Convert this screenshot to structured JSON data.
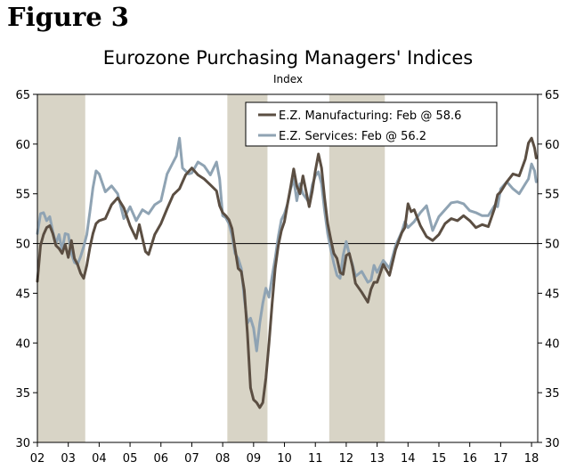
{
  "figure_label": "Figure 3",
  "chart_data": {
    "type": "line",
    "title": "Eurozone Purchasing Managers' Indices",
    "subtitle": "Index",
    "ylim": [
      30,
      65
    ],
    "yticks": [
      "65",
      "60",
      "55",
      "50",
      "45",
      "40",
      "35",
      "30"
    ],
    "xlim": [
      2002,
      2018.2
    ],
    "xticks": [
      "02",
      "03",
      "04",
      "05",
      "06",
      "07",
      "08",
      "09",
      "10",
      "11",
      "12",
      "13",
      "14",
      "15",
      "16",
      "17",
      "18"
    ],
    "reference_line": 50,
    "colors": {
      "manufacturing": "#5b4e42",
      "services": "#8fa3b3",
      "recession": "#d8d4c6"
    },
    "recessions": [
      {
        "start": 2002.0,
        "end": 2003.55
      },
      {
        "start": 2008.15,
        "end": 2009.45
      },
      {
        "start": 2011.45,
        "end": 2013.25
      }
    ],
    "series": [
      {
        "name": "E.Z. Manufacturing: Feb @ 58.6",
        "key": "manufacturing",
        "points": [
          [
            2002.0,
            46.2
          ],
          [
            2002.1,
            49.8
          ],
          [
            2002.2,
            50.9
          ],
          [
            2002.3,
            51.6
          ],
          [
            2002.4,
            51.8
          ],
          [
            2002.5,
            51.0
          ],
          [
            2002.6,
            49.8
          ],
          [
            2002.7,
            49.5
          ],
          [
            2002.8,
            49.0
          ],
          [
            2002.9,
            49.9
          ],
          [
            2003.0,
            48.6
          ],
          [
            2003.1,
            50.3
          ],
          [
            2003.2,
            48.5
          ],
          [
            2003.3,
            47.9
          ],
          [
            2003.4,
            47.0
          ],
          [
            2003.5,
            46.5
          ],
          [
            2003.6,
            47.8
          ],
          [
            2003.7,
            49.6
          ],
          [
            2003.8,
            51.0
          ],
          [
            2003.9,
            52.0
          ],
          [
            2004.0,
            52.3
          ],
          [
            2004.2,
            52.5
          ],
          [
            2004.4,
            53.9
          ],
          [
            2004.6,
            54.6
          ],
          [
            2004.8,
            53.6
          ],
          [
            2005.0,
            51.8
          ],
          [
            2005.2,
            50.5
          ],
          [
            2005.3,
            51.9
          ],
          [
            2005.5,
            49.2
          ],
          [
            2005.6,
            48.9
          ],
          [
            2005.8,
            50.9
          ],
          [
            2006.0,
            52.0
          ],
          [
            2006.2,
            53.5
          ],
          [
            2006.4,
            54.9
          ],
          [
            2006.6,
            55.5
          ],
          [
            2006.8,
            56.9
          ],
          [
            2007.0,
            57.6
          ],
          [
            2007.2,
            56.9
          ],
          [
            2007.4,
            56.5
          ],
          [
            2007.6,
            55.9
          ],
          [
            2007.8,
            55.3
          ],
          [
            2007.9,
            53.8
          ],
          [
            2008.0,
            53.1
          ],
          [
            2008.1,
            52.8
          ],
          [
            2008.2,
            52.4
          ],
          [
            2008.3,
            51.5
          ],
          [
            2008.4,
            49.5
          ],
          [
            2008.5,
            47.5
          ],
          [
            2008.6,
            47.2
          ],
          [
            2008.7,
            45.3
          ],
          [
            2008.8,
            41.0
          ],
          [
            2008.9,
            35.5
          ],
          [
            2009.0,
            34.3
          ],
          [
            2009.1,
            34.0
          ],
          [
            2009.2,
            33.5
          ],
          [
            2009.3,
            34.0
          ],
          [
            2009.4,
            36.5
          ],
          [
            2009.5,
            40.0
          ],
          [
            2009.6,
            44.0
          ],
          [
            2009.7,
            47.5
          ],
          [
            2009.8,
            49.8
          ],
          [
            2009.9,
            51.3
          ],
          [
            2010.0,
            52.2
          ],
          [
            2010.1,
            54.0
          ],
          [
            2010.2,
            55.7
          ],
          [
            2010.3,
            57.5
          ],
          [
            2010.4,
            55.8
          ],
          [
            2010.5,
            55.0
          ],
          [
            2010.6,
            56.8
          ],
          [
            2010.8,
            53.7
          ],
          [
            2010.9,
            55.3
          ],
          [
            2011.0,
            57.3
          ],
          [
            2011.1,
            59.0
          ],
          [
            2011.2,
            57.6
          ],
          [
            2011.3,
            54.6
          ],
          [
            2011.4,
            52.0
          ],
          [
            2011.5,
            50.4
          ],
          [
            2011.6,
            49.0
          ],
          [
            2011.7,
            48.5
          ],
          [
            2011.8,
            47.1
          ],
          [
            2011.9,
            46.9
          ],
          [
            2012.0,
            48.8
          ],
          [
            2012.1,
            49.0
          ],
          [
            2012.2,
            47.7
          ],
          [
            2012.3,
            46.0
          ],
          [
            2012.5,
            45.1
          ],
          [
            2012.7,
            44.1
          ],
          [
            2012.8,
            45.4
          ],
          [
            2012.9,
            46.1
          ],
          [
            2013.0,
            46.1
          ],
          [
            2013.2,
            47.9
          ],
          [
            2013.4,
            46.8
          ],
          [
            2013.6,
            49.4
          ],
          [
            2013.8,
            51.1
          ],
          [
            2013.9,
            51.6
          ],
          [
            2014.0,
            54.0
          ],
          [
            2014.1,
            53.2
          ],
          [
            2014.2,
            53.4
          ],
          [
            2014.4,
            51.8
          ],
          [
            2014.6,
            50.7
          ],
          [
            2014.8,
            50.3
          ],
          [
            2015.0,
            50.9
          ],
          [
            2015.2,
            52.0
          ],
          [
            2015.4,
            52.5
          ],
          [
            2015.6,
            52.3
          ],
          [
            2015.8,
            52.8
          ],
          [
            2016.0,
            52.3
          ],
          [
            2016.2,
            51.6
          ],
          [
            2016.4,
            51.9
          ],
          [
            2016.6,
            51.7
          ],
          [
            2016.8,
            53.5
          ],
          [
            2016.9,
            54.9
          ],
          [
            2017.0,
            55.2
          ],
          [
            2017.2,
            56.2
          ],
          [
            2017.4,
            57.0
          ],
          [
            2017.6,
            56.8
          ],
          [
            2017.8,
            58.5
          ],
          [
            2017.9,
            60.1
          ],
          [
            2018.0,
            60.6
          ],
          [
            2018.1,
            59.6
          ],
          [
            2018.15,
            58.6
          ]
        ]
      },
      {
        "name": "E.Z. Services: Feb @ 56.2",
        "key": "services",
        "points": [
          [
            2002.0,
            51.0
          ],
          [
            2002.1,
            53.0
          ],
          [
            2002.2,
            53.1
          ],
          [
            2002.3,
            52.3
          ],
          [
            2002.4,
            52.7
          ],
          [
            2002.5,
            51.2
          ],
          [
            2002.6,
            50.0
          ],
          [
            2002.7,
            50.9
          ],
          [
            2002.8,
            49.3
          ],
          [
            2002.9,
            51.0
          ],
          [
            2003.0,
            50.9
          ],
          [
            2003.1,
            49.0
          ],
          [
            2003.2,
            48.1
          ],
          [
            2003.3,
            47.9
          ],
          [
            2003.4,
            48.7
          ],
          [
            2003.5,
            49.7
          ],
          [
            2003.6,
            50.9
          ],
          [
            2003.7,
            53.2
          ],
          [
            2003.8,
            55.6
          ],
          [
            2003.9,
            57.3
          ],
          [
            2004.0,
            57.0
          ],
          [
            2004.2,
            55.2
          ],
          [
            2004.4,
            55.8
          ],
          [
            2004.6,
            55.0
          ],
          [
            2004.8,
            52.5
          ],
          [
            2005.0,
            53.7
          ],
          [
            2005.2,
            52.3
          ],
          [
            2005.4,
            53.4
          ],
          [
            2005.6,
            53.0
          ],
          [
            2005.8,
            53.9
          ],
          [
            2006.0,
            54.3
          ],
          [
            2006.2,
            57.0
          ],
          [
            2006.4,
            58.2
          ],
          [
            2006.5,
            58.8
          ],
          [
            2006.6,
            60.6
          ],
          [
            2006.7,
            57.6
          ],
          [
            2006.9,
            57.0
          ],
          [
            2007.0,
            57.1
          ],
          [
            2007.2,
            58.2
          ],
          [
            2007.4,
            57.8
          ],
          [
            2007.6,
            56.9
          ],
          [
            2007.8,
            58.2
          ],
          [
            2007.9,
            56.5
          ],
          [
            2008.0,
            52.8
          ],
          [
            2008.1,
            52.6
          ],
          [
            2008.2,
            52.0
          ],
          [
            2008.3,
            50.8
          ],
          [
            2008.4,
            49.0
          ],
          [
            2008.5,
            48.5
          ],
          [
            2008.6,
            47.5
          ],
          [
            2008.7,
            44.5
          ],
          [
            2008.8,
            42.0
          ],
          [
            2008.9,
            42.5
          ],
          [
            2009.0,
            41.5
          ],
          [
            2009.1,
            39.2
          ],
          [
            2009.2,
            42.0
          ],
          [
            2009.3,
            44.0
          ],
          [
            2009.4,
            45.5
          ],
          [
            2009.5,
            44.6
          ],
          [
            2009.6,
            46.7
          ],
          [
            2009.7,
            48.5
          ],
          [
            2009.8,
            50.7
          ],
          [
            2009.9,
            52.4
          ],
          [
            2010.0,
            53.0
          ],
          [
            2010.1,
            54.0
          ],
          [
            2010.2,
            55.5
          ],
          [
            2010.3,
            56.5
          ],
          [
            2010.4,
            54.3
          ],
          [
            2010.5,
            56.0
          ],
          [
            2010.6,
            55.0
          ],
          [
            2010.8,
            54.1
          ],
          [
            2010.9,
            55.9
          ],
          [
            2011.0,
            56.8
          ],
          [
            2011.1,
            57.2
          ],
          [
            2011.2,
            56.0
          ],
          [
            2011.3,
            53.3
          ],
          [
            2011.4,
            51.0
          ],
          [
            2011.5,
            49.4
          ],
          [
            2011.6,
            48.0
          ],
          [
            2011.7,
            46.8
          ],
          [
            2011.8,
            46.5
          ],
          [
            2011.9,
            48.8
          ],
          [
            2012.0,
            50.2
          ],
          [
            2012.1,
            48.9
          ],
          [
            2012.2,
            47.9
          ],
          [
            2012.3,
            46.7
          ],
          [
            2012.5,
            47.2
          ],
          [
            2012.7,
            46.1
          ],
          [
            2012.8,
            46.3
          ],
          [
            2012.9,
            47.8
          ],
          [
            2013.0,
            47.1
          ],
          [
            2013.2,
            48.3
          ],
          [
            2013.4,
            47.5
          ],
          [
            2013.6,
            49.8
          ],
          [
            2013.8,
            51.2
          ],
          [
            2013.9,
            52.2
          ],
          [
            2014.0,
            51.6
          ],
          [
            2014.2,
            52.2
          ],
          [
            2014.4,
            53.1
          ],
          [
            2014.6,
            53.8
          ],
          [
            2014.8,
            51.3
          ],
          [
            2015.0,
            52.7
          ],
          [
            2015.2,
            53.4
          ],
          [
            2015.4,
            54.1
          ],
          [
            2015.6,
            54.2
          ],
          [
            2015.8,
            54.0
          ],
          [
            2016.0,
            53.3
          ],
          [
            2016.2,
            53.1
          ],
          [
            2016.4,
            52.8
          ],
          [
            2016.6,
            52.8
          ],
          [
            2016.8,
            53.8
          ],
          [
            2016.9,
            53.7
          ],
          [
            2017.0,
            55.5
          ],
          [
            2017.2,
            56.2
          ],
          [
            2017.4,
            55.5
          ],
          [
            2017.6,
            55.0
          ],
          [
            2017.8,
            56.0
          ],
          [
            2017.9,
            56.5
          ],
          [
            2018.0,
            58.0
          ],
          [
            2018.1,
            57.3
          ],
          [
            2018.15,
            56.2
          ]
        ]
      }
    ],
    "legend_position": "top-right"
  }
}
